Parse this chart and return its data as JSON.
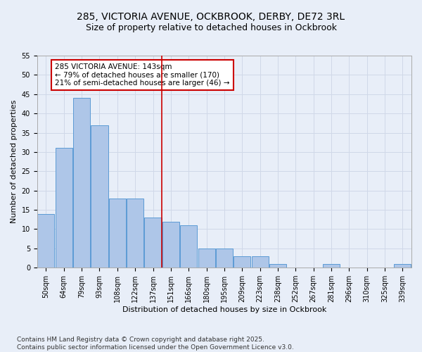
{
  "title_line1": "285, VICTORIA AVENUE, OCKBROOK, DERBY, DE72 3RL",
  "title_line2": "Size of property relative to detached houses in Ockbrook",
  "xlabel": "Distribution of detached houses by size in Ockbrook",
  "ylabel": "Number of detached properties",
  "categories": [
    "50sqm",
    "64sqm",
    "79sqm",
    "93sqm",
    "108sqm",
    "122sqm",
    "137sqm",
    "151sqm",
    "166sqm",
    "180sqm",
    "195sqm",
    "209sqm",
    "223sqm",
    "238sqm",
    "252sqm",
    "267sqm",
    "281sqm",
    "296sqm",
    "310sqm",
    "325sqm",
    "339sqm"
  ],
  "bar_heights": [
    14,
    31,
    44,
    37,
    18,
    18,
    13,
    12,
    11,
    5,
    5,
    3,
    3,
    1,
    0,
    0,
    1,
    0,
    0,
    0,
    1
  ],
  "bar_color": "#aec6e8",
  "bar_edge_color": "#5b9bd5",
  "vline_x_index": 7,
  "vline_color": "#cc0000",
  "annotation_text": "285 VICTORIA AVENUE: 143sqm\n← 79% of detached houses are smaller (170)\n21% of semi-detached houses are larger (46) →",
  "annotation_box_color": "#ffffff",
  "annotation_box_edge_color": "#cc0000",
  "ylim": [
    0,
    55
  ],
  "yticks": [
    0,
    5,
    10,
    15,
    20,
    25,
    30,
    35,
    40,
    45,
    50,
    55
  ],
  "grid_color": "#d0d8e8",
  "bg_color": "#e8eef8",
  "footer_text": "Contains HM Land Registry data © Crown copyright and database right 2025.\nContains public sector information licensed under the Open Government Licence v3.0.",
  "title_fontsize": 10,
  "subtitle_fontsize": 9,
  "axis_label_fontsize": 8,
  "tick_fontsize": 7,
  "annotation_fontsize": 7.5,
  "footer_fontsize": 6.5
}
